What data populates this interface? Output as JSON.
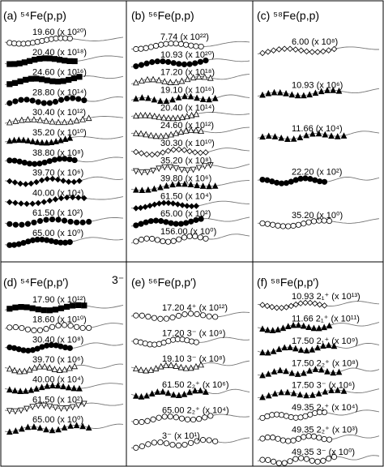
{
  "chart_data": {
    "type": "scatter",
    "panels": [
      {
        "id": "a",
        "title": "(a) ⁵⁴Fe(p,p)",
        "series": [
          {
            "energy": "19.60",
            "scale": "(x 10²⁰)",
            "marker": "circle-open"
          },
          {
            "energy": "20.40",
            "scale": "(x 10¹⁸)",
            "marker": "square-filled"
          },
          {
            "energy": "24.60",
            "scale": "(x 10¹⁶)",
            "marker": "square-filled"
          },
          {
            "energy": "28.80",
            "scale": "(x 10¹⁴)",
            "marker": "circle-filled"
          },
          {
            "energy": "30.40",
            "scale": "(x 10¹²)",
            "marker": "triangle-open"
          },
          {
            "energy": "35.20",
            "scale": "(x 10¹⁰)",
            "marker": "triangle-filled"
          },
          {
            "energy": "38.80",
            "scale": "(x 10⁸)",
            "marker": "circle-filled"
          },
          {
            "energy": "39.70",
            "scale": "(x 10⁶)",
            "marker": "diamond-filled"
          },
          {
            "energy": "40.00",
            "scale": "(x 10⁴)",
            "marker": "diamond-filled"
          },
          {
            "energy": "61.50",
            "scale": "(x 10²)",
            "marker": "circle-filled"
          },
          {
            "energy": "65.00",
            "scale": "(x 10⁰)",
            "marker": "circle-filled"
          }
        ]
      },
      {
        "id": "b",
        "title": "(b) ⁵⁶Fe(p,p)",
        "series": [
          {
            "energy": "7.74",
            "scale": "(x 10²²)",
            "marker": "circle-open"
          },
          {
            "energy": "10.93",
            "scale": "(x 10²⁰)",
            "marker": "circle-filled"
          },
          {
            "energy": "17.20",
            "scale": "(x 10¹⁸)",
            "marker": "triangle-open"
          },
          {
            "energy": "19.10",
            "scale": "(x 10¹⁶)",
            "marker": "triangle-filled"
          },
          {
            "energy": "20.40",
            "scale": "(x 10¹⁴)",
            "marker": "triangle-open"
          },
          {
            "energy": "24.60",
            "scale": "(x 10¹²)",
            "marker": "triangle-open"
          },
          {
            "energy": "30.30",
            "scale": "(x 10¹⁰)",
            "marker": "diamond-open"
          },
          {
            "energy": "35.20",
            "scale": "(x 10⁸)",
            "marker": "triangle-down-open"
          },
          {
            "energy": "39.80",
            "scale": "(x 10⁶)",
            "marker": "triangle-filled"
          },
          {
            "energy": "61.50",
            "scale": "(x 10⁴)",
            "marker": "diamond-filled"
          },
          {
            "energy": "65.00",
            "scale": "(x 10²)",
            "marker": "circle-filled"
          },
          {
            "energy": "156.00",
            "scale": "(x 10⁰)",
            "marker": "circle-open"
          }
        ]
      },
      {
        "id": "c",
        "title": "(c) ⁵⁸Fe(p,p)",
        "series": [
          {
            "energy": "6.00",
            "scale": "(x 10⁸)",
            "marker": "diamond-open"
          },
          {
            "energy": "10.93",
            "scale": "(x 10⁶)",
            "marker": "triangle-filled"
          },
          {
            "energy": "11.66",
            "scale": "(x 10⁴)",
            "marker": "triangle-filled"
          },
          {
            "energy": "22.20",
            "scale": "(x 10²)",
            "marker": "circle-filled"
          },
          {
            "energy": "35.20",
            "scale": "(x 10⁰)",
            "marker": "circle-open"
          }
        ]
      },
      {
        "id": "d",
        "title": "(d) ⁵⁴Fe(p,p′)",
        "note": "3⁻",
        "series": [
          {
            "energy": "17.90",
            "scale": "(x 10¹²)",
            "marker": "square-filled"
          },
          {
            "energy": "18.60",
            "scale": "(x 10¹⁰)",
            "marker": "circle-open"
          },
          {
            "energy": "30.40",
            "scale": "(x 10⁸)",
            "marker": "circle-filled"
          },
          {
            "energy": "39.70",
            "scale": "(x 10⁶)",
            "marker": "triangle-open"
          },
          {
            "energy": "40.00",
            "scale": "(x 10⁴)",
            "marker": "triangle-filled"
          },
          {
            "energy": "61.50",
            "scale": "(x 10²)",
            "marker": "triangle-down-open"
          },
          {
            "energy": "65.00",
            "scale": "(x 10⁰)",
            "marker": "triangle-filled"
          }
        ]
      },
      {
        "id": "e",
        "title": "(e) ⁵⁶Fe(p,p′)",
        "series": [
          {
            "energy": "17.20",
            "state": "4⁺",
            "scale": "(x 10¹²)",
            "marker": "circle-open"
          },
          {
            "energy": "17.20",
            "state": "3⁻",
            "scale": "(x 10⁹)",
            "marker": "circle-open"
          },
          {
            "energy": "19.10",
            "state": "3⁻",
            "scale": "(x 10⁸)",
            "marker": "triangle-open"
          },
          {
            "energy": "61.50",
            "state": "2₂⁺",
            "scale": "(x 10⁶)",
            "marker": "triangle-filled"
          },
          {
            "energy": "65.00",
            "state": "2₂⁺",
            "scale": "(x 10⁴)",
            "marker": "circle-open"
          },
          {
            "energy": "",
            "state": "3⁻",
            "scale": "(x 10¹)",
            "marker": "circle-open"
          }
        ]
      },
      {
        "id": "f",
        "title": "(f) ⁵⁸Fe(p,p′)",
        "series": [
          {
            "energy": "10.93",
            "state": "2₁⁺",
            "scale": "(x 10¹³)",
            "marker": "diamond-open"
          },
          {
            "energy": "11.66",
            "state": "2₁⁺",
            "scale": "(x 10¹¹)",
            "marker": "triangle-filled"
          },
          {
            "energy": "17.50",
            "state": "2₁⁺",
            "scale": "(x 10⁹)",
            "marker": "triangle-filled"
          },
          {
            "energy": "17.50",
            "state": "2₂⁺",
            "scale": "(x 10⁸)",
            "marker": "triangle-filled"
          },
          {
            "energy": "17.50",
            "state": "3⁻",
            "scale": "(x 10⁶)",
            "marker": "triangle-filled"
          },
          {
            "energy": "49.35",
            "state": "2₁⁺",
            "scale": "(x 10⁴)",
            "marker": "circle-open"
          },
          {
            "energy": "49.35",
            "state": "2₂⁺",
            "scale": "(x 10³)",
            "marker": "circle-open"
          },
          {
            "energy": "49.35",
            "state": "3⁻",
            "scale": "(x 10⁰)",
            "marker": "circle-open"
          }
        ]
      }
    ]
  }
}
